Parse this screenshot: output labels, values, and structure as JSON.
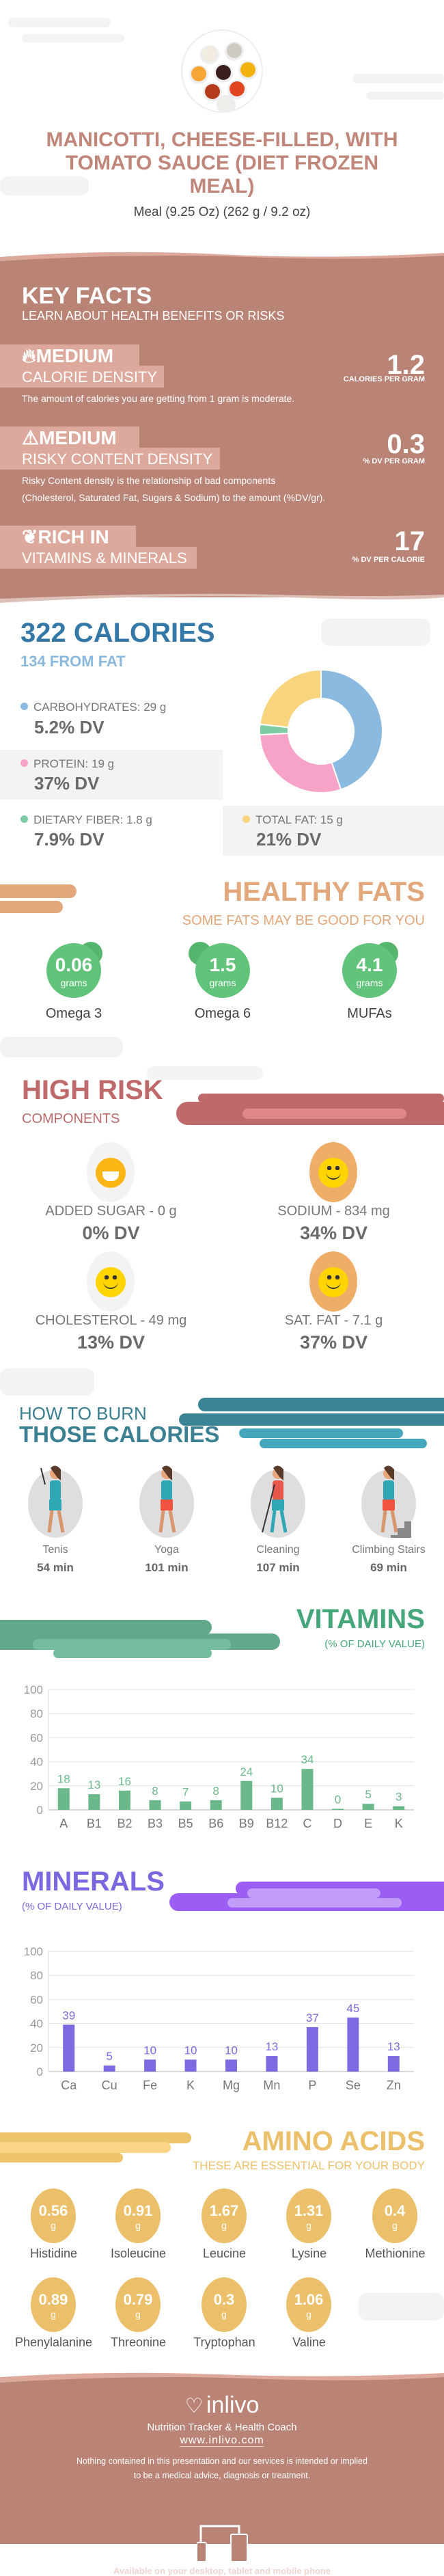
{
  "header": {
    "image_icon": "sauce-bowls-photo",
    "title_lines": [
      "MANICOTTI, CHEESE-FILLED, WITH",
      "TOMATO SAUCE (DIET FROZEN",
      "MEAL)"
    ],
    "serving": "Meal (9.25 Oz) (262 g / 9.2 oz)"
  },
  "key_facts": {
    "title": "KEY FACTS",
    "subtitle": "LEARN ABOUT HEALTH BENEFITS OR RISKS",
    "items": [
      {
        "icon": "flame-icon",
        "level": "MEDIUM",
        "name": "CALORIE DENSITY",
        "value": "1.2",
        "unit": "CALORIES PER GRAM",
        "description": [
          "The amount of calories you are getting from 1 gram is moderate."
        ]
      },
      {
        "icon": "warning-icon",
        "level": "MEDIUM",
        "name": "RISKY CONTENT DENSITY",
        "value": "0.3",
        "unit": "% DV PER GRAM",
        "description": [
          "Risky Content density is the relationship of bad components",
          "(Cholesterol, Saturated Fat, Sugars & Sodium) to the amount (%DV/gr)."
        ]
      },
      {
        "icon": "leaf-icon",
        "level": "RICH  IN",
        "name": "VITAMINS & MINERALS",
        "value": "17",
        "unit": "% DV PER CALORIE",
        "description": []
      }
    ]
  },
  "calories": {
    "title": "322 CALORIES",
    "from_fat": "134 FROM FAT",
    "macros": [
      {
        "label": "CARBOHYDRATES: 29 g",
        "dv": "5.2% DV",
        "grams": 29,
        "color": "#8bbae0"
      },
      {
        "label": "PROTEIN: 19 g",
        "dv": "37% DV",
        "grams": 19,
        "color": "#f7a3c8"
      },
      {
        "label": "DIETARY FIBER: 1.8 g",
        "dv": "7.9% DV",
        "grams": 1.8,
        "color": "#7fcca3"
      },
      {
        "label": "TOTAL FAT: 15 g",
        "dv": "21% DV",
        "grams": 15,
        "color": "#f8d47f"
      }
    ]
  },
  "healthy_fats": {
    "title": "HEALTHY FATS",
    "subtitle": "SOME FATS MAY BE GOOD FOR YOU",
    "unit": "grams",
    "items": [
      {
        "value": "0.06",
        "name": "Omega 3"
      },
      {
        "value": "1.5",
        "name": "Omega 6"
      },
      {
        "value": "4.1",
        "name": "MUFAs"
      }
    ]
  },
  "high_risk": {
    "title": "HIGH RISK",
    "subtitle": "COMPONENTS",
    "items": [
      {
        "label": "ADDED SUGAR - 0 g",
        "dv": "0% DV",
        "icon": "grinning-face-icon"
      },
      {
        "label": "SODIUM - 834 mg",
        "dv": "34% DV",
        "icon": "smiley-face-icon"
      },
      {
        "label": "CHOLESTEROL - 49 mg",
        "dv": "13% DV",
        "icon": "smiley-face-icon"
      },
      {
        "label": "SAT. FAT - 7.1 g",
        "dv": "37% DV",
        "icon": "smiley-face-icon"
      }
    ]
  },
  "burn": {
    "title_light": "HOW TO BURN",
    "title_bold": "THOSE CALORIES",
    "activities": [
      {
        "name": "Tenis",
        "time": "54 min",
        "icon": "tennis-player-icon"
      },
      {
        "name": "Yoga",
        "time": "101 min",
        "icon": "yoga-pose-icon"
      },
      {
        "name": "Cleaning",
        "time": "107 min",
        "icon": "sweeping-person-icon"
      },
      {
        "name": "Climbing Stairs",
        "time": "69 min",
        "icon": "climbing-stairs-icon"
      }
    ]
  },
  "chart_data": [
    {
      "type": "bar",
      "title": "VITAMINS",
      "subtitle": "(% OF DAILY VALUE)",
      "categories": [
        "A",
        "B1",
        "B2",
        "B3",
        "B5",
        "B6",
        "B9",
        "B12",
        "C",
        "D",
        "E",
        "K"
      ],
      "values": [
        18,
        13,
        16,
        8,
        7,
        8,
        24,
        10,
        34,
        0,
        5,
        3
      ],
      "yticks": [
        "0",
        "20",
        "40",
        "60",
        "80",
        "100"
      ],
      "ylim": [
        0,
        100
      ],
      "grid": true,
      "color": "#6bb98a"
    },
    {
      "type": "bar",
      "title": "MINERALS",
      "subtitle": "(% OF DAILY VALUE)",
      "categories": [
        "Ca",
        "Cu",
        "Fe",
        "K",
        "Mg",
        "Mn",
        "P",
        "Se",
        "Zn"
      ],
      "values": [
        39,
        5,
        10,
        10,
        10,
        13,
        37,
        45,
        13
      ],
      "yticks": [
        "0",
        "20",
        "40",
        "60",
        "80",
        "100"
      ],
      "ylim": [
        0,
        100
      ],
      "grid": true,
      "color": "#7e6ae0"
    }
  ],
  "amino_acids": {
    "title": "AMINO ACIDS",
    "subtitle": "THESE ARE ESSENTIAL FOR YOUR BODY",
    "unit": "g",
    "items": [
      {
        "value": "0.56",
        "name": "Histidine"
      },
      {
        "value": "0.91",
        "name": "Isoleucine"
      },
      {
        "value": "1.67",
        "name": "Leucine"
      },
      {
        "value": "1.31",
        "name": "Lysine"
      },
      {
        "value": "0.4",
        "name": "Methionine"
      },
      {
        "value": "0.89",
        "name": "Phenylalanine"
      },
      {
        "value": "0.79",
        "name": "Threonine"
      },
      {
        "value": "0.3",
        "name": "Tryptophan"
      },
      {
        "value": "1.06",
        "name": "Valine"
      }
    ]
  },
  "footer": {
    "brand": "inlivo",
    "tagline": "Nutrition Tracker & Health Coach",
    "url": "www.inlivo.com",
    "disclaimer": [
      "Nothing contained in this presentation and our services is intended or implied",
      "to be a medical advice, diagnosis or treatment."
    ],
    "devices_icon": "devices-icon",
    "available": "Available on your desktop, tablet and mobile phone"
  }
}
